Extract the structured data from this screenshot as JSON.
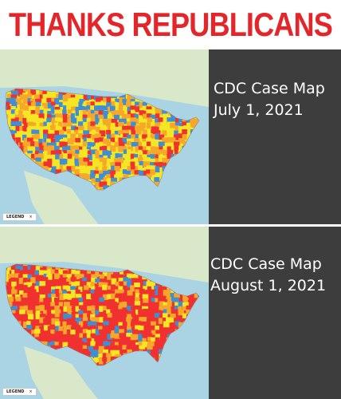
{
  "headline": "THANKS REPUBLICANS",
  "maps": [
    {
      "caption_line1": "CDC Case Map",
      "caption_line2": "July 1, 2021",
      "legend_label": "LEGEND",
      "legend_close": "×",
      "dominant_levels": [
        "moderate",
        "substantial",
        "low",
        "high"
      ]
    },
    {
      "caption_line1": "CDC Case Map",
      "caption_line2": "August 1, 2021",
      "legend_label": "LEGEND",
      "legend_close": "×",
      "dominant_levels": [
        "high",
        "substantial",
        "moderate",
        "low"
      ]
    }
  ],
  "colors": {
    "high": "#f0312f",
    "substantial": "#f7a82a",
    "moderate": "#f5e623",
    "low": "#3f8fd4",
    "water": "#aad3e4",
    "land": "#d9e8c9",
    "caption_bg": "#3d3d3d",
    "headline": "#e4262b"
  },
  "icons": {
    "legend_close": "close-icon"
  }
}
